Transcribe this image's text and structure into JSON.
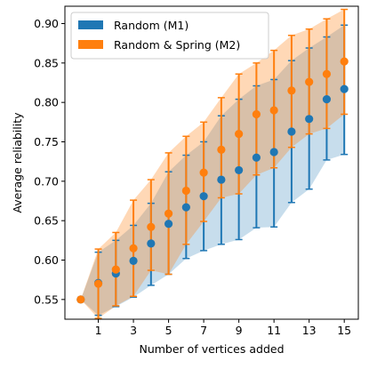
{
  "chart_data": {
    "type": "scatter",
    "xlabel": "Number of vertices added",
    "ylabel": "Average reliability",
    "xlim": [
      -0.9,
      15.8
    ],
    "ylim": [
      0.525,
      0.922
    ],
    "x_ticks": [
      1,
      3,
      5,
      7,
      9,
      11,
      13,
      15
    ],
    "y_ticks": [
      0.55,
      0.6,
      0.65,
      0.7,
      0.75,
      0.8,
      0.85,
      0.9
    ],
    "y_tick_labels": [
      "0.55",
      "0.60",
      "0.65",
      "0.70",
      "0.75",
      "0.80",
      "0.85",
      "0.90"
    ],
    "legend_position": "top-left",
    "x": [
      0,
      1,
      2,
      3,
      4,
      5,
      6,
      7,
      8,
      9,
      10,
      11,
      12,
      13,
      14,
      15
    ],
    "series": [
      {
        "name": "Random (M1)",
        "color": "#1f77b4",
        "values": [
          0.55,
          0.571,
          0.583,
          0.599,
          0.621,
          0.646,
          0.667,
          0.681,
          0.702,
          0.714,
          0.73,
          0.737,
          0.763,
          0.779,
          0.804,
          0.817
        ],
        "lower": [
          0.55,
          0.53,
          0.541,
          0.553,
          0.568,
          0.582,
          0.602,
          0.612,
          0.62,
          0.626,
          0.641,
          0.642,
          0.673,
          0.69,
          0.727,
          0.734
        ],
        "upper": [
          0.55,
          0.61,
          0.625,
          0.644,
          0.672,
          0.712,
          0.733,
          0.75,
          0.783,
          0.804,
          0.821,
          0.829,
          0.853,
          0.869,
          0.883,
          0.898
        ]
      },
      {
        "name": "Random & Spring (M2)",
        "color": "#ff7f0e",
        "values": [
          0.55,
          0.57,
          0.588,
          0.615,
          0.642,
          0.659,
          0.688,
          0.711,
          0.74,
          0.76,
          0.785,
          0.79,
          0.815,
          0.826,
          0.836,
          0.852
        ],
        "lower": [
          0.55,
          0.526,
          0.542,
          0.554,
          0.587,
          0.582,
          0.62,
          0.649,
          0.679,
          0.684,
          0.708,
          0.717,
          0.743,
          0.76,
          0.767,
          0.785
        ],
        "upper": [
          0.55,
          0.614,
          0.635,
          0.676,
          0.702,
          0.736,
          0.757,
          0.775,
          0.806,
          0.836,
          0.85,
          0.866,
          0.885,
          0.893,
          0.906,
          0.918
        ]
      }
    ]
  }
}
